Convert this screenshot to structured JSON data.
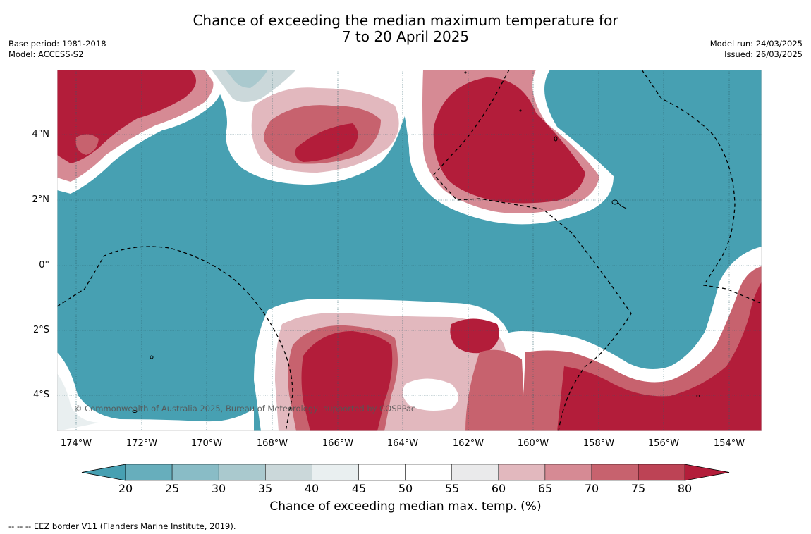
{
  "title_line1": "Chance of exceeding the median maximum temperature for",
  "title_line2": "7 to 20 April 2025",
  "meta": {
    "base_period": "Base period: 1981-2018",
    "model": "Model: ACCESS-S2",
    "model_run": "Model run: 24/03/2025",
    "issued": "Issued: 26/03/2025"
  },
  "map": {
    "lat_labels": [
      "4°N",
      "2°N",
      "0°",
      "2°S",
      "4°S"
    ],
    "lon_labels": [
      "174°W",
      "172°W",
      "170°W",
      "168°W",
      "166°W",
      "164°W",
      "162°W",
      "160°W",
      "158°W",
      "156°W",
      "154°W"
    ],
    "copyright": "© Commonwealth of Australia 2025, Bureau of Meteorology, supported by COSPPac"
  },
  "colorbar": {
    "ticks": [
      "20",
      "25",
      "30",
      "35",
      "40",
      "45",
      "50",
      "55",
      "60",
      "65",
      "70",
      "75",
      "80"
    ],
    "colors": [
      "#47a0b2",
      "#67aebc",
      "#89bcc6",
      "#aac9ce",
      "#cbd8da",
      "#e9eff0",
      "#ffffff",
      "#ffffff",
      "#eaeaeb",
      "#e2b8be",
      "#d68a94",
      "#c7626e",
      "#bd4355",
      "#b31d3a"
    ],
    "title": "Chance of exceeding median max. temp. (%)"
  },
  "footnote": "--  --  -- EEZ border V11 (Flanders Marine Institute, 2019)."
}
